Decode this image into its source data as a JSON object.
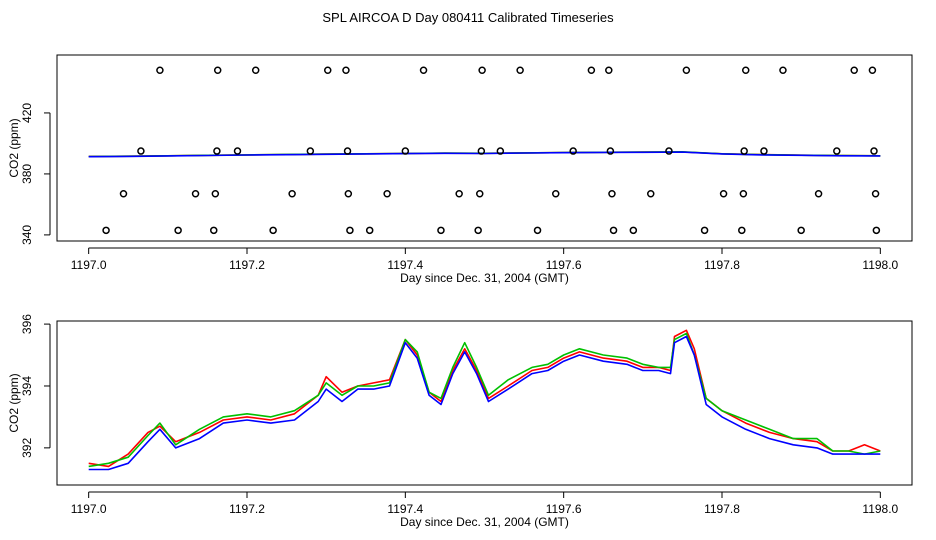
{
  "figure_title": "SPL AIRCOA D  Day 080411  Calibrated Timeseries",
  "chart_data": [
    {
      "type": "line+scatter",
      "xlabel": "Day since Dec. 31, 2004 (GMT)",
      "ylabel": "CO2 (ppm)",
      "xlim": [
        1196.96,
        1198.04
      ],
      "ylim": [
        336,
        458
      ],
      "xticks": [
        "1197.0",
        "1197.2",
        "1197.4",
        "1197.6",
        "1197.8",
        "1198.0"
      ],
      "xtick_values": [
        1197.0,
        1197.2,
        1197.4,
        1197.6,
        1197.8,
        1198.0
      ],
      "yticks": [
        "340",
        "380",
        "420"
      ],
      "ytick_values": [
        340,
        380,
        420
      ],
      "scatter_levels": [
        343,
        367,
        395,
        448
      ],
      "points": [
        {
          "x": 1197.022,
          "y": 343
        },
        {
          "x": 1197.044,
          "y": 367
        },
        {
          "x": 1197.066,
          "y": 395
        },
        {
          "x": 1197.09,
          "y": 448
        },
        {
          "x": 1197.113,
          "y": 343
        },
        {
          "x": 1197.135,
          "y": 367
        },
        {
          "x": 1197.158,
          "y": 343
        },
        {
          "x": 1197.16,
          "y": 367
        },
        {
          "x": 1197.162,
          "y": 395
        },
        {
          "x": 1197.163,
          "y": 448
        },
        {
          "x": 1197.188,
          "y": 395
        },
        {
          "x": 1197.211,
          "y": 448
        },
        {
          "x": 1197.233,
          "y": 343
        },
        {
          "x": 1197.257,
          "y": 367
        },
        {
          "x": 1197.28,
          "y": 395
        },
        {
          "x": 1197.302,
          "y": 448
        },
        {
          "x": 1197.325,
          "y": 448
        },
        {
          "x": 1197.327,
          "y": 395
        },
        {
          "x": 1197.328,
          "y": 367
        },
        {
          "x": 1197.33,
          "y": 343
        },
        {
          "x": 1197.355,
          "y": 343
        },
        {
          "x": 1197.377,
          "y": 367
        },
        {
          "x": 1197.4,
          "y": 395
        },
        {
          "x": 1197.423,
          "y": 448
        },
        {
          "x": 1197.445,
          "y": 343
        },
        {
          "x": 1197.468,
          "y": 367
        },
        {
          "x": 1197.492,
          "y": 343
        },
        {
          "x": 1197.494,
          "y": 367
        },
        {
          "x": 1197.496,
          "y": 395
        },
        {
          "x": 1197.497,
          "y": 448
        },
        {
          "x": 1197.52,
          "y": 395
        },
        {
          "x": 1197.545,
          "y": 448
        },
        {
          "x": 1197.567,
          "y": 343
        },
        {
          "x": 1197.59,
          "y": 367
        },
        {
          "x": 1197.612,
          "y": 395
        },
        {
          "x": 1197.635,
          "y": 448
        },
        {
          "x": 1197.657,
          "y": 448
        },
        {
          "x": 1197.659,
          "y": 395
        },
        {
          "x": 1197.661,
          "y": 367
        },
        {
          "x": 1197.663,
          "y": 343
        },
        {
          "x": 1197.688,
          "y": 343
        },
        {
          "x": 1197.71,
          "y": 367
        },
        {
          "x": 1197.733,
          "y": 395
        },
        {
          "x": 1197.755,
          "y": 448
        },
        {
          "x": 1197.778,
          "y": 343
        },
        {
          "x": 1197.802,
          "y": 367
        },
        {
          "x": 1197.825,
          "y": 343
        },
        {
          "x": 1197.827,
          "y": 367
        },
        {
          "x": 1197.828,
          "y": 395
        },
        {
          "x": 1197.83,
          "y": 448
        },
        {
          "x": 1197.853,
          "y": 395
        },
        {
          "x": 1197.877,
          "y": 448
        },
        {
          "x": 1197.9,
          "y": 343
        },
        {
          "x": 1197.922,
          "y": 367
        },
        {
          "x": 1197.945,
          "y": 395
        },
        {
          "x": 1197.967,
          "y": 448
        },
        {
          "x": 1197.99,
          "y": 448
        },
        {
          "x": 1197.992,
          "y": 395
        },
        {
          "x": 1197.994,
          "y": 367
        },
        {
          "x": 1197.995,
          "y": 343
        }
      ],
      "line_x": [
        1197.0,
        1197.05,
        1197.1,
        1197.15,
        1197.2,
        1197.25,
        1197.3,
        1197.35,
        1197.4,
        1197.45,
        1197.5,
        1197.55,
        1197.6,
        1197.65,
        1197.7,
        1197.75,
        1197.8,
        1197.85,
        1197.9,
        1197.95,
        1198.0
      ],
      "series": [
        {
          "name": "red",
          "color": "#ff0000",
          "values": [
            391.5,
            391.6,
            391.9,
            392.2,
            392.5,
            392.7,
            393.0,
            393.2,
            393.4,
            393.6,
            393.5,
            393.8,
            394.0,
            394.2,
            394.3,
            394.4,
            393.2,
            392.7,
            392.3,
            392.0,
            391.9
          ]
        },
        {
          "name": "green",
          "color": "#00c000",
          "values": [
            391.4,
            391.6,
            391.9,
            392.2,
            392.5,
            392.8,
            393.0,
            393.2,
            393.4,
            393.7,
            393.5,
            393.8,
            394.0,
            394.2,
            394.4,
            394.5,
            393.2,
            392.6,
            392.3,
            392.0,
            391.9
          ]
        },
        {
          "name": "blue",
          "color": "#0000ff",
          "values": [
            391.3,
            391.5,
            391.8,
            392.1,
            392.4,
            392.6,
            392.9,
            393.1,
            393.3,
            393.5,
            393.4,
            393.7,
            393.9,
            394.1,
            394.2,
            394.3,
            393.1,
            392.5,
            392.2,
            391.9,
            391.8
          ]
        }
      ]
    },
    {
      "type": "line",
      "xlabel": "Day since Dec. 31, 2004 (GMT)",
      "ylabel": "CO2 (ppm)",
      "xlim": [
        1196.96,
        1198.04
      ],
      "ylim": [
        390.8,
        396.1
      ],
      "xticks": [
        "1197.0",
        "1197.2",
        "1197.4",
        "1197.6",
        "1197.8",
        "1198.0"
      ],
      "xtick_values": [
        1197.0,
        1197.2,
        1197.4,
        1197.6,
        1197.8,
        1198.0
      ],
      "yticks": [
        "392",
        "394",
        "396"
      ],
      "ytick_values": [
        392,
        394,
        396
      ],
      "x": [
        1197.0,
        1197.025,
        1197.05,
        1197.075,
        1197.09,
        1197.11,
        1197.14,
        1197.17,
        1197.2,
        1197.23,
        1197.26,
        1197.29,
        1197.3,
        1197.32,
        1197.34,
        1197.36,
        1197.38,
        1197.4,
        1197.415,
        1197.43,
        1197.445,
        1197.46,
        1197.475,
        1197.49,
        1197.505,
        1197.53,
        1197.56,
        1197.58,
        1197.6,
        1197.62,
        1197.65,
        1197.68,
        1197.7,
        1197.72,
        1197.735,
        1197.74,
        1197.755,
        1197.765,
        1197.78,
        1197.8,
        1197.83,
        1197.86,
        1197.89,
        1197.92,
        1197.94,
        1197.96,
        1197.98,
        1198.0
      ],
      "series": [
        {
          "name": "red",
          "color": "#ff0000",
          "values": [
            391.5,
            391.4,
            391.8,
            392.5,
            392.7,
            392.2,
            392.5,
            392.9,
            393.0,
            392.9,
            393.1,
            393.7,
            394.3,
            393.8,
            394.0,
            394.1,
            394.2,
            395.5,
            395.0,
            393.8,
            393.5,
            394.5,
            395.2,
            394.5,
            393.6,
            394.0,
            394.5,
            394.6,
            394.9,
            395.1,
            394.9,
            394.8,
            394.6,
            394.6,
            394.5,
            395.6,
            395.8,
            395.2,
            393.6,
            393.2,
            392.8,
            392.5,
            392.3,
            392.2,
            391.9,
            391.9,
            392.1,
            391.9
          ]
        },
        {
          "name": "green",
          "color": "#00c000",
          "values": [
            391.4,
            391.5,
            391.7,
            392.4,
            392.8,
            392.1,
            392.6,
            393.0,
            393.1,
            393.0,
            393.2,
            393.7,
            394.1,
            393.7,
            394.0,
            394.0,
            394.1,
            395.5,
            395.1,
            393.8,
            393.6,
            394.6,
            395.4,
            394.6,
            393.7,
            394.2,
            394.6,
            394.7,
            395.0,
            395.2,
            395.0,
            394.9,
            394.7,
            394.6,
            394.6,
            395.5,
            395.7,
            395.0,
            393.6,
            393.2,
            392.9,
            392.6,
            392.3,
            392.3,
            391.9,
            391.9,
            391.8,
            391.9
          ]
        },
        {
          "name": "blue",
          "color": "#0000ff",
          "values": [
            391.3,
            391.3,
            391.5,
            392.2,
            392.6,
            392.0,
            392.3,
            392.8,
            392.9,
            392.8,
            392.9,
            393.5,
            393.9,
            393.5,
            393.9,
            393.9,
            394.0,
            395.4,
            394.9,
            393.7,
            393.4,
            394.4,
            395.1,
            394.4,
            393.5,
            393.9,
            394.4,
            394.5,
            394.8,
            395.0,
            394.8,
            394.7,
            394.5,
            394.5,
            394.4,
            395.4,
            395.6,
            395.0,
            393.4,
            393.0,
            392.6,
            392.3,
            392.1,
            392.0,
            391.8,
            391.8,
            391.8,
            391.8
          ]
        }
      ]
    }
  ]
}
